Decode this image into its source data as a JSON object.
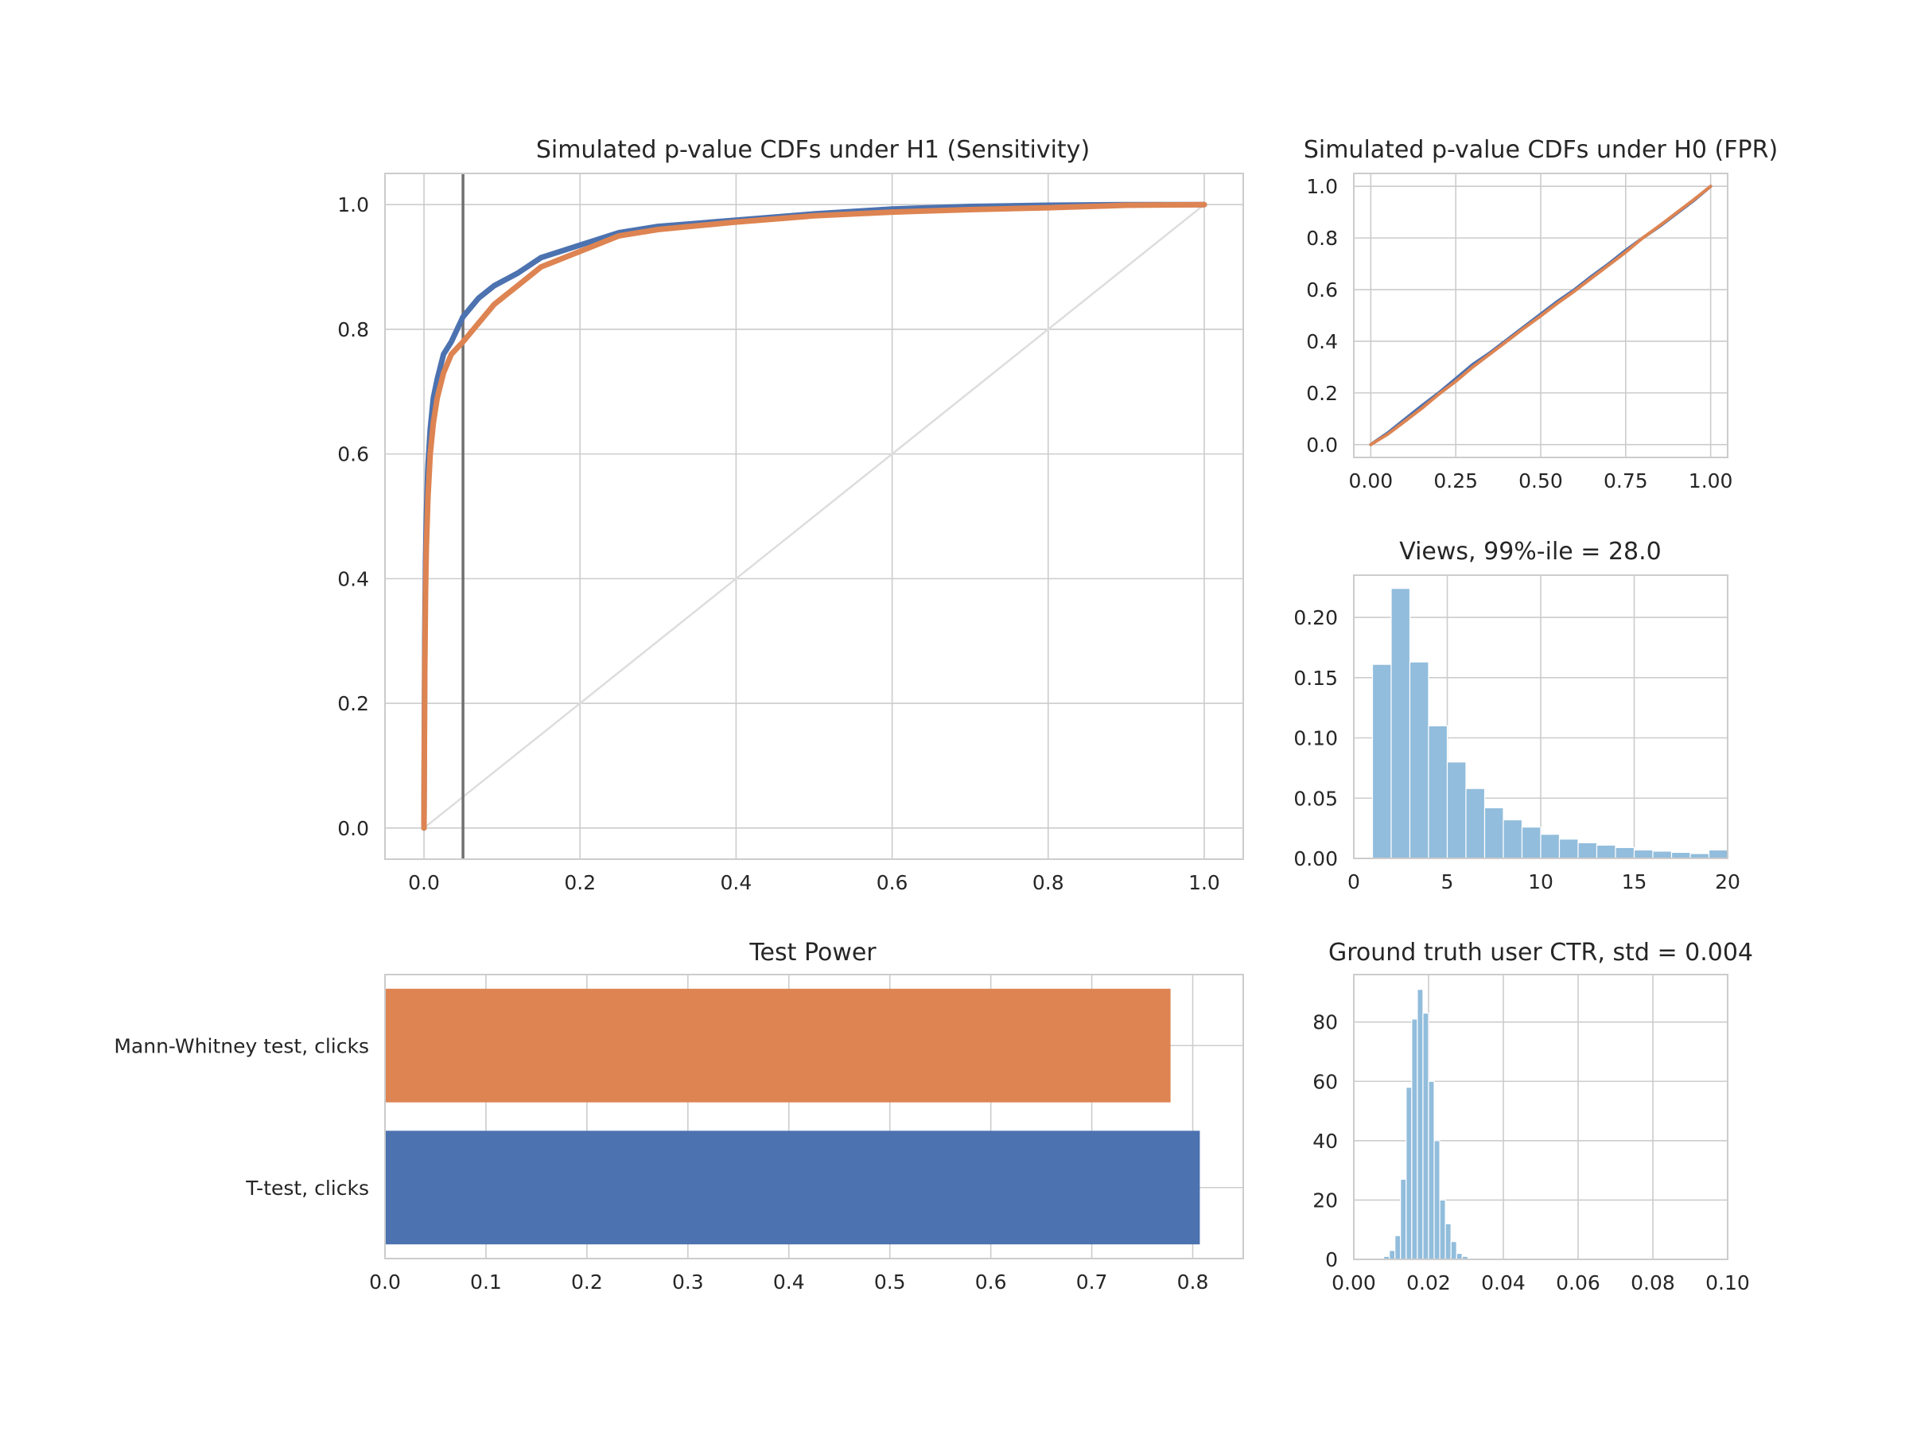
{
  "chart_data": [
    {
      "id": "sensitivity",
      "type": "line",
      "title": "Simulated p-value CDFs under H1 (Sensitivity)",
      "xlim": [
        -0.05,
        1.05
      ],
      "ylim": [
        -0.05,
        1.05
      ],
      "xticks": [
        "0.0",
        "0.2",
        "0.4",
        "0.6",
        "0.8",
        "1.0"
      ],
      "yticks": [
        "0.0",
        "0.2",
        "0.4",
        "0.6",
        "0.8",
        "1.0"
      ],
      "vline": 0.05,
      "diagonal": true,
      "grid": true,
      "series": [
        {
          "color": "#4c72b0",
          "x": [
            0,
            0.001,
            0.002,
            0.003,
            0.005,
            0.008,
            0.012,
            0.017,
            0.025,
            0.035,
            0.05,
            0.07,
            0.09,
            0.12,
            0.15,
            0.2,
            0.25,
            0.3,
            0.4,
            0.5,
            0.6,
            0.7,
            0.8,
            0.9,
            1.0
          ],
          "y": [
            0,
            0.3,
            0.43,
            0.5,
            0.58,
            0.64,
            0.69,
            0.72,
            0.76,
            0.78,
            0.82,
            0.85,
            0.87,
            0.89,
            0.915,
            0.935,
            0.955,
            0.965,
            0.975,
            0.985,
            0.993,
            0.997,
            0.999,
            1.0,
            1.0
          ]
        },
        {
          "color": "#dd8452",
          "x": [
            0,
            0.001,
            0.002,
            0.003,
            0.005,
            0.008,
            0.012,
            0.017,
            0.025,
            0.035,
            0.05,
            0.07,
            0.09,
            0.12,
            0.15,
            0.2,
            0.25,
            0.3,
            0.4,
            0.5,
            0.6,
            0.7,
            0.8,
            0.9,
            1.0
          ],
          "y": [
            0,
            0.25,
            0.38,
            0.45,
            0.53,
            0.6,
            0.65,
            0.69,
            0.73,
            0.76,
            0.78,
            0.81,
            0.84,
            0.87,
            0.9,
            0.925,
            0.95,
            0.96,
            0.972,
            0.982,
            0.988,
            0.992,
            0.995,
            0.999,
            1.0
          ]
        }
      ]
    },
    {
      "id": "fpr",
      "type": "line",
      "title": "Simulated p-value CDFs under H0 (FPR)",
      "xlim": [
        -0.05,
        1.05
      ],
      "ylim": [
        -0.05,
        1.05
      ],
      "xticks": [
        "0.00",
        "0.25",
        "0.50",
        "0.75",
        "1.00"
      ],
      "yticks": [
        "0.0",
        "0.2",
        "0.4",
        "0.6",
        "0.8",
        "1.0"
      ],
      "grid": true,
      "series": [
        {
          "color": "#4c72b0",
          "x": [
            0,
            0.05,
            0.1,
            0.15,
            0.2,
            0.25,
            0.3,
            0.35,
            0.4,
            0.45,
            0.5,
            0.55,
            0.6,
            0.65,
            0.7,
            0.75,
            0.8,
            0.85,
            0.9,
            0.95,
            1.0
          ],
          "y": [
            0,
            0.045,
            0.098,
            0.15,
            0.2,
            0.255,
            0.31,
            0.355,
            0.405,
            0.455,
            0.505,
            0.555,
            0.6,
            0.652,
            0.7,
            0.752,
            0.8,
            0.845,
            0.895,
            0.945,
            1.0
          ]
        },
        {
          "color": "#dd8452",
          "x": [
            0,
            0.05,
            0.1,
            0.15,
            0.2,
            0.25,
            0.3,
            0.35,
            0.4,
            0.45,
            0.5,
            0.55,
            0.6,
            0.65,
            0.7,
            0.75,
            0.8,
            0.85,
            0.9,
            0.95,
            1.0
          ],
          "y": [
            0,
            0.04,
            0.09,
            0.14,
            0.195,
            0.245,
            0.3,
            0.35,
            0.4,
            0.45,
            0.498,
            0.548,
            0.595,
            0.645,
            0.695,
            0.745,
            0.8,
            0.848,
            0.898,
            0.948,
            1.0
          ]
        }
      ]
    },
    {
      "id": "views",
      "type": "histogram",
      "title": "Views, 99%-ile = 28.0",
      "xlim": [
        0,
        20
      ],
      "ylim": [
        0,
        0.235
      ],
      "xticks": [
        "0",
        "5",
        "10",
        "15",
        "20"
      ],
      "yticks": [
        "0.00",
        "0.05",
        "0.10",
        "0.15",
        "0.20"
      ],
      "color": "#92bddc",
      "grid": true,
      "bins": [
        1,
        2,
        3,
        4,
        5,
        6,
        7,
        8,
        9,
        10,
        11,
        12,
        13,
        14,
        15,
        16,
        17,
        18,
        19
      ],
      "values": [
        0.161,
        0.224,
        0.163,
        0.11,
        0.08,
        0.058,
        0.042,
        0.032,
        0.026,
        0.02,
        0.016,
        0.013,
        0.011,
        0.009,
        0.007,
        0.006,
        0.005,
        0.004,
        0.007
      ]
    },
    {
      "id": "power",
      "type": "bar",
      "orientation": "horizontal",
      "title": "Test Power",
      "xlim": [
        0,
        0.85
      ],
      "xticks": [
        "0.0",
        "0.1",
        "0.2",
        "0.3",
        "0.4",
        "0.5",
        "0.6",
        "0.7",
        "0.8"
      ],
      "grid": true,
      "categories": [
        "Mann-Whitney test, clicks",
        "T-test, clicks"
      ],
      "values": [
        0.778,
        0.807
      ],
      "colors": [
        "#dd8452",
        "#4c72b0"
      ]
    },
    {
      "id": "ctr",
      "type": "histogram",
      "title": "Ground truth user CTR, std = 0.004",
      "xlim": [
        0,
        0.1
      ],
      "ylim": [
        0,
        96
      ],
      "xticks": [
        "0.00",
        "0.02",
        "0.04",
        "0.06",
        "0.08",
        "0.10"
      ],
      "yticks": [
        "0",
        "20",
        "40",
        "60",
        "80"
      ],
      "color": "#92bddc",
      "grid": true,
      "bins": [
        0.008,
        0.0095,
        0.011,
        0.0125,
        0.014,
        0.0155,
        0.017,
        0.0185,
        0.02,
        0.0215,
        0.023,
        0.0245,
        0.026,
        0.0275,
        0.029,
        0.0305,
        0.032,
        0.0335
      ],
      "values": [
        1,
        3,
        8,
        27,
        58,
        81,
        91,
        83,
        60,
        40,
        20,
        12,
        6,
        2,
        1,
        0,
        0,
        0
      ]
    }
  ]
}
